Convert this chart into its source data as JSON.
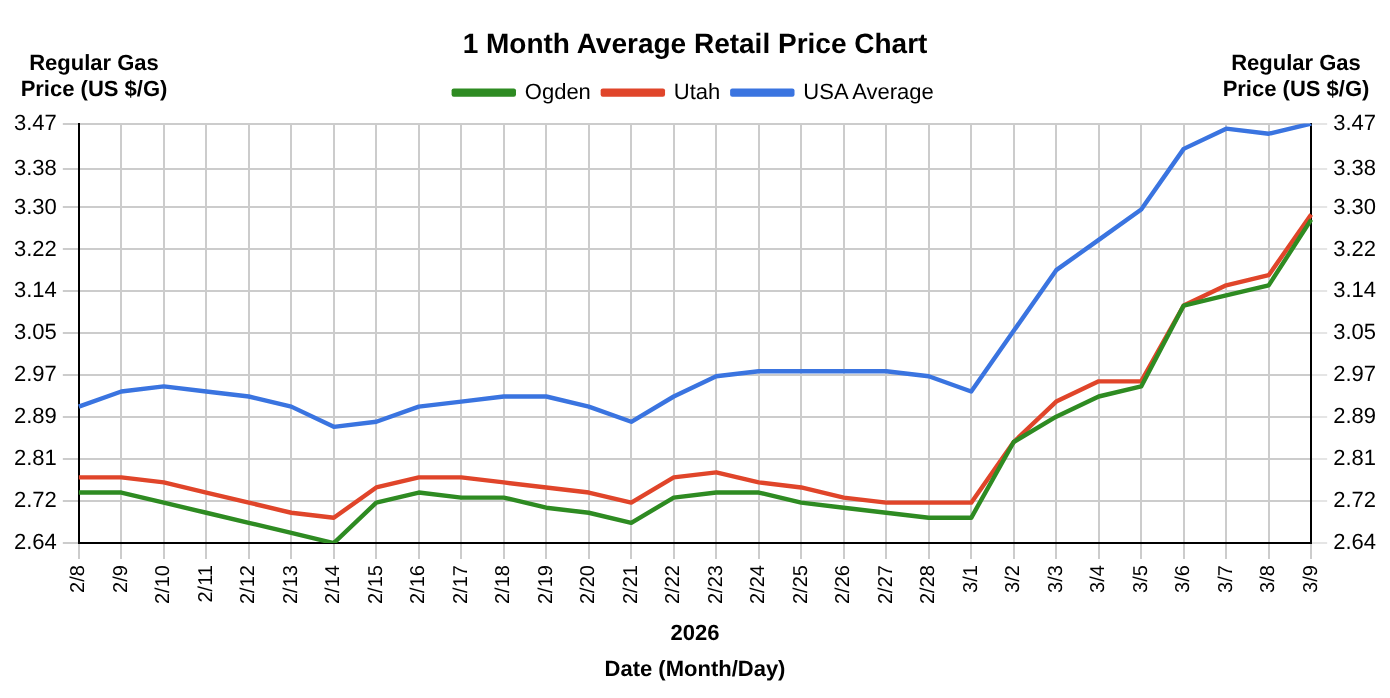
{
  "chart_data": {
    "type": "line",
    "title": "1 Month Average Retail Price Chart",
    "xlabel": "Date (Month/Day)",
    "ylabel": "Regular Gas Price (US $/G)",
    "y2label": "Regular Gas Price (US $/G)",
    "annotations": [
      "2026"
    ],
    "categories": [
      "2/8",
      "2/9",
      "2/10",
      "2/11",
      "2/12",
      "2/13",
      "2/14",
      "2/15",
      "2/16",
      "2/17",
      "2/18",
      "2/19",
      "2/20",
      "2/21",
      "2/22",
      "2/23",
      "2/24",
      "2/25",
      "2/26",
      "2/27",
      "2/28",
      "3/1",
      "3/2",
      "3/3",
      "3/4",
      "3/5",
      "3/6",
      "3/7",
      "3/8",
      "3/9"
    ],
    "series": [
      {
        "name": "Ogden",
        "color": "#2e8b22",
        "values": [
          2.74,
          2.74,
          2.72,
          2.7,
          2.68,
          2.66,
          2.64,
          2.72,
          2.74,
          2.73,
          2.73,
          2.71,
          2.7,
          2.68,
          2.73,
          2.74,
          2.74,
          2.72,
          2.71,
          2.7,
          2.69,
          2.69,
          2.84,
          2.89,
          2.93,
          2.95,
          3.11,
          3.13,
          3.15,
          3.28
        ]
      },
      {
        "name": "Utah",
        "color": "#e0452a",
        "values": [
          2.77,
          2.77,
          2.76,
          2.74,
          2.72,
          2.7,
          2.69,
          2.75,
          2.77,
          2.77,
          2.76,
          2.75,
          2.74,
          2.72,
          2.77,
          2.78,
          2.76,
          2.75,
          2.73,
          2.72,
          2.72,
          2.72,
          2.84,
          2.92,
          2.96,
          2.96,
          3.11,
          3.15,
          3.17,
          3.29
        ]
      },
      {
        "name": "USA Average",
        "color": "#3a74e0",
        "values": [
          2.91,
          2.94,
          2.95,
          2.94,
          2.93,
          2.91,
          2.87,
          2.88,
          2.91,
          2.92,
          2.93,
          2.93,
          2.91,
          2.88,
          2.93,
          2.97,
          2.98,
          2.98,
          2.98,
          2.98,
          2.97,
          2.94,
          3.06,
          3.18,
          3.24,
          3.3,
          3.42,
          3.46,
          3.45,
          3.47
        ]
      }
    ],
    "ylim": [
      2.64,
      3.47
    ],
    "yticks": [
      {
        "value": 2.64,
        "label": "2.64"
      },
      {
        "value": 2.723,
        "label": "2.72"
      },
      {
        "value": 2.806,
        "label": "2.81"
      },
      {
        "value": 2.889,
        "label": "2.89"
      },
      {
        "value": 2.972,
        "label": "2.97"
      },
      {
        "value": 3.055,
        "label": "3.05"
      },
      {
        "value": 3.138,
        "label": "3.14"
      },
      {
        "value": 3.221,
        "label": "3.22"
      },
      {
        "value": 3.304,
        "label": "3.30"
      },
      {
        "value": 3.38,
        "label": "3.38"
      },
      {
        "value": 3.47,
        "label": "3.47"
      }
    ],
    "y2lim": [
      2.64,
      3.47
    ],
    "y2ticks": [
      {
        "value": 2.64,
        "label": "2.64"
      },
      {
        "value": 2.723,
        "label": "2.72"
      },
      {
        "value": 2.806,
        "label": "2.81"
      },
      {
        "value": 2.889,
        "label": "2.89"
      },
      {
        "value": 2.972,
        "label": "2.97"
      },
      {
        "value": 3.055,
        "label": "3.05"
      },
      {
        "value": 3.138,
        "label": "3.14"
      },
      {
        "value": 3.221,
        "label": "3.22"
      },
      {
        "value": 3.304,
        "label": "3.30"
      },
      {
        "value": 3.38,
        "label": "3.38"
      },
      {
        "value": 3.47,
        "label": "3.47"
      }
    ],
    "grid": true,
    "legend": "top",
    "marker": "none",
    "line_style": "solid"
  }
}
